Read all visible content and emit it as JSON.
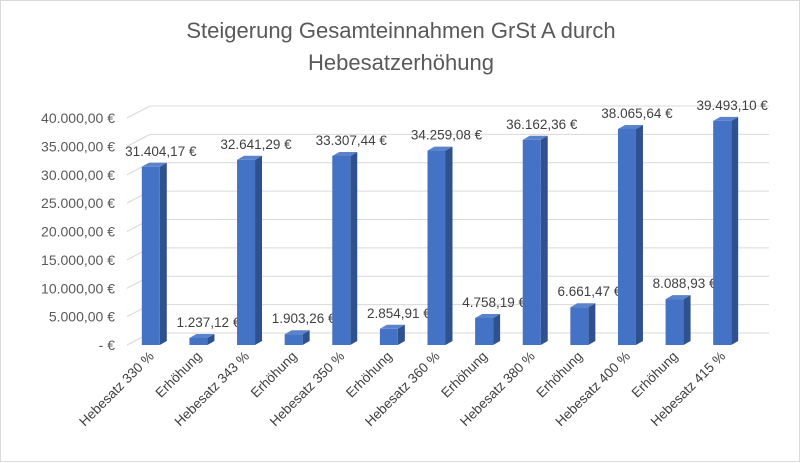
{
  "chart_data": {
    "type": "bar",
    "title_lines": [
      "Steigerung Gesamteinnahmen  GrSt A durch",
      "Hebesatzerhöhung"
    ],
    "categories": [
      "Hebesatz 330 %",
      "Erhöhung",
      "Hebesatz 343 %",
      "Erhöhung",
      "Hebesatz 350 %",
      "Erhöhung",
      "Hebesatz 360 %",
      "Erhöhung",
      "Hebesatz 380 %",
      "Erhöhung",
      "Hebesatz 400 %",
      "Erhöhung",
      "Hebesatz 415 %"
    ],
    "values": [
      31404.17,
      1237.12,
      32641.29,
      1903.26,
      33307.44,
      2854.91,
      34259.08,
      4758.19,
      36162.36,
      6661.47,
      38065.64,
      8088.93,
      39493.1
    ],
    "data_labels": [
      "31.404,17 €",
      "1.237,12 €",
      "32.641,29 €",
      "1.903,26 €",
      "33.307,44 €",
      "2.854,91 €",
      "34.259,08 €",
      "4.758,19 €",
      "36.162,36 €",
      "6.661,47 €",
      "38.065,64 €",
      "8.088,93 €",
      "39.493,10 €"
    ],
    "y_ticks": [
      0,
      5000,
      10000,
      15000,
      20000,
      25000,
      30000,
      35000,
      40000
    ],
    "y_tick_labels": [
      " -  €",
      "5.000,00 €",
      "10.000,00 €",
      "15.000,00 €",
      "20.000,00 €",
      "25.000,00 €",
      "30.000,00 €",
      "35.000,00 €",
      "40.000,00 €"
    ],
    "ylim": [
      0,
      40000
    ],
    "grid": true,
    "legend": "none",
    "style": "3d-column",
    "colors": {
      "bar_front": "#4472c4",
      "bar_side": "#2f528f",
      "bar_top": "#5b83cc",
      "grid": "#d9d9d9",
      "text": "#595959"
    }
  }
}
